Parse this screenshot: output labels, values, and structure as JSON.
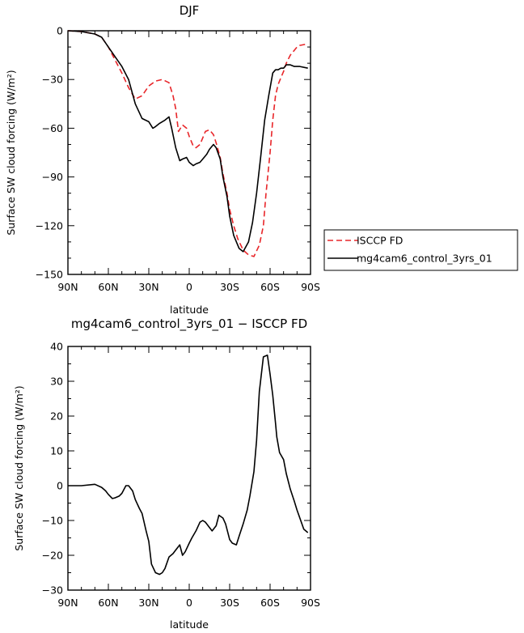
{
  "chart_data": [
    {
      "type": "line",
      "title": "DJF",
      "xlabel": "latitude",
      "ylabel": "Surface SW cloud forcing (W/m²)",
      "xlim": [
        90,
        -90
      ],
      "ylim": [
        -150,
        0
      ],
      "x_ticks": [
        90,
        60,
        30,
        0,
        -30,
        -60,
        -90
      ],
      "x_tick_labels": [
        "90N",
        "60N",
        "30N",
        "0",
        "30S",
        "60S",
        "90S"
      ],
      "y_ticks": [
        0,
        -30,
        -60,
        -90,
        -120,
        -150
      ],
      "y_tick_labels": [
        "0",
        "−30",
        "−60",
        "−90",
        "−120",
        "−150"
      ],
      "legend_position": "outside-right",
      "series": [
        {
          "name": "ISCCP FD",
          "color": "#e8262a",
          "style": "dashed",
          "x": [
            90,
            80,
            70,
            65,
            60,
            55,
            50,
            45,
            40,
            35,
            30,
            25,
            20,
            15,
            12,
            10,
            8,
            5,
            2,
            0,
            -3,
            -5,
            -8,
            -10,
            -12,
            -15,
            -18,
            -20,
            -23,
            -25,
            -28,
            -30,
            -33,
            -36,
            -40,
            -44,
            -48,
            -52,
            -55,
            -57,
            -60,
            -62,
            -64,
            -66,
            -68,
            -70,
            -72,
            -75,
            -78,
            -80,
            -82,
            -85,
            -88
          ],
          "y": [
            0,
            -0.5,
            -2,
            -4,
            -10,
            -18,
            -26,
            -35,
            -42,
            -40,
            -34,
            -31,
            -30,
            -32,
            -40,
            -48,
            -62,
            -58,
            -60,
            -65,
            -71,
            -72,
            -70,
            -66,
            -62,
            -61,
            -64,
            -69,
            -78,
            -88,
            -100,
            -110,
            -120,
            -128,
            -135,
            -138,
            -139,
            -132,
            -120,
            -100,
            -75,
            -55,
            -40,
            -33,
            -29,
            -25,
            -20,
            -15,
            -12,
            -10,
            -9,
            -8.5,
            -8
          ]
        },
        {
          "name": "mg4cam6_control_3yrs_01",
          "color": "#000000",
          "style": "solid",
          "x": [
            90,
            80,
            70,
            65,
            60,
            55,
            50,
            45,
            40,
            35,
            30,
            27,
            25,
            22,
            18,
            15,
            13,
            10,
            7,
            5,
            2,
            0,
            -3,
            -5,
            -8,
            -10,
            -13,
            -15,
            -18,
            -20,
            -23,
            -25,
            -28,
            -30,
            -33,
            -37,
            -40,
            -44,
            -47,
            -50,
            -53,
            -56,
            -59,
            -62,
            -64,
            -66,
            -68,
            -70,
            -72,
            -75,
            -78,
            -82,
            -88
          ],
          "y": [
            0,
            -0.5,
            -2,
            -4,
            -10,
            -16,
            -22,
            -30,
            -45,
            -54,
            -56,
            -60,
            -59,
            -57,
            -55,
            -53,
            -60,
            -72,
            -80,
            -79,
            -78,
            -81,
            -83,
            -82,
            -81,
            -79,
            -76,
            -73,
            -70,
            -72,
            -79,
            -90,
            -102,
            -114,
            -126,
            -134,
            -136,
            -130,
            -118,
            -100,
            -78,
            -55,
            -40,
            -26,
            -24,
            -24,
            -23,
            -23,
            -21,
            -21,
            -22,
            -22,
            -23
          ]
        }
      ]
    },
    {
      "type": "line",
      "title": "mg4cam6_control_3yrs_01 − ISCCP FD",
      "xlabel": "latitude",
      "ylabel": "Surface SW cloud forcing (W/m²)",
      "xlim": [
        90,
        -90
      ],
      "ylim": [
        -30,
        40
      ],
      "x_ticks": [
        90,
        60,
        30,
        0,
        -30,
        -60,
        -90
      ],
      "x_tick_labels": [
        "90N",
        "60N",
        "30N",
        "0",
        "30S",
        "60S",
        "90S"
      ],
      "y_ticks": [
        40,
        30,
        20,
        10,
        0,
        -10,
        -20,
        -30
      ],
      "y_tick_labels": [
        "40",
        "30",
        "20",
        "10",
        "0",
        "−10",
        "−20",
        "−30"
      ],
      "series": [
        {
          "color": "#000000",
          "style": "solid",
          "x": [
            90,
            80,
            70,
            65,
            62,
            60,
            57,
            55,
            52,
            50,
            47,
            45,
            42,
            40,
            37,
            35,
            32,
            30,
            28,
            25,
            22,
            20,
            18,
            15,
            12,
            10,
            7,
            5,
            3,
            0,
            -2,
            -5,
            -8,
            -10,
            -12,
            -15,
            -17,
            -20,
            -22,
            -25,
            -27,
            -30,
            -32,
            -35,
            -37,
            -40,
            -43,
            -45,
            -48,
            -50,
            -52,
            -55,
            -58,
            -60,
            -62,
            -64,
            -65,
            -67,
            -70,
            -72,
            -75,
            -78,
            -80,
            -85,
            -88
          ],
          "y": [
            0,
            0,
            0.4,
            -0.5,
            -1.5,
            -2.5,
            -3.7,
            -3.5,
            -3,
            -2.2,
            0,
            0,
            -1.5,
            -4,
            -6.5,
            -8,
            -13,
            -16,
            -22.5,
            -25,
            -25.5,
            -25,
            -23.8,
            -20.5,
            -19.5,
            -18.5,
            -17,
            -20,
            -19,
            -16.5,
            -15,
            -13,
            -10.5,
            -10,
            -10.5,
            -12,
            -13,
            -11.5,
            -8.5,
            -9.3,
            -11,
            -15.5,
            -16.5,
            -17,
            -14.5,
            -11,
            -7,
            -3,
            4,
            13,
            27,
            37,
            37.5,
            32,
            26,
            18,
            14,
            9.5,
            7.5,
            3.5,
            -1,
            -4.5,
            -7,
            -12.5,
            -13.5
          ]
        }
      ]
    }
  ],
  "legend": {
    "entries": [
      "ISCCP FD",
      "mg4cam6_control_3yrs_01"
    ]
  }
}
